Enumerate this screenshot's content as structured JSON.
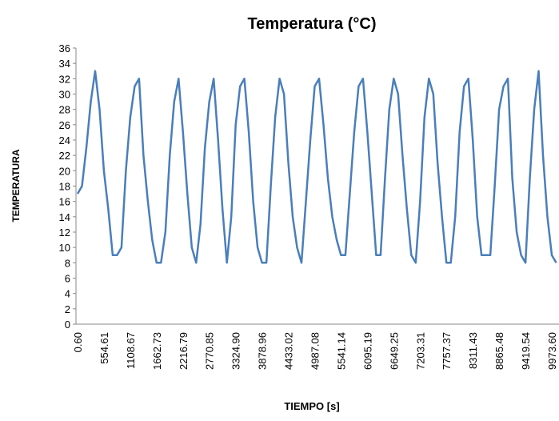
{
  "chart_data": {
    "type": "line",
    "title": "Temperatura (°C)",
    "x_label": "TIEMPO [s]",
    "y_label": "TEMPERATURA",
    "categories": [
      "0.60",
      null,
      null,
      null,
      null,
      null,
      "554.61",
      null,
      null,
      null,
      null,
      null,
      "1108.67",
      null,
      null,
      null,
      null,
      null,
      "1662.73",
      null,
      null,
      null,
      null,
      null,
      "2216.79",
      null,
      null,
      null,
      null,
      null,
      "2770.85",
      null,
      null,
      null,
      null,
      null,
      "3324.90",
      null,
      null,
      null,
      null,
      null,
      "3878.96",
      null,
      null,
      null,
      null,
      null,
      "4433.02",
      null,
      null,
      null,
      null,
      null,
      "4987.08",
      null,
      null,
      null,
      null,
      null,
      "5541.14",
      null,
      null,
      null,
      null,
      null,
      "6095.19",
      null,
      null,
      null,
      null,
      null,
      "6649.25",
      null,
      null,
      null,
      null,
      null,
      "7203.31",
      null,
      null,
      null,
      null,
      null,
      "7757.37",
      null,
      null,
      null,
      null,
      null,
      "8311.43",
      null,
      null,
      null,
      null,
      null,
      "8865.48",
      null,
      null,
      null,
      null,
      null,
      "9419.54",
      null,
      null,
      null,
      null,
      null,
      "9973.60",
      null
    ],
    "values": [
      17,
      18,
      23,
      29,
      33,
      28,
      20,
      15,
      9,
      9,
      10,
      20,
      27,
      31,
      32,
      22,
      16,
      11,
      8,
      8,
      12,
      22,
      29,
      32,
      25,
      17,
      10,
      8,
      13,
      23,
      29,
      32,
      24,
      15,
      8,
      14,
      26,
      31,
      32,
      25,
      16,
      10,
      8,
      8,
      18,
      27,
      32,
      30,
      21,
      14,
      10,
      8,
      16,
      24,
      31,
      32,
      26,
      19,
      14,
      11,
      9,
      9,
      17,
      25,
      31,
      32,
      25,
      17,
      9,
      9,
      19,
      28,
      32,
      30,
      22,
      15,
      9,
      8,
      16,
      27,
      32,
      30,
      21,
      14,
      8,
      8,
      14,
      25,
      31,
      32,
      24,
      14,
      9,
      9,
      9,
      18,
      28,
      31,
      32,
      19,
      12,
      9,
      8,
      19,
      28,
      33,
      22,
      14,
      9,
      8
    ],
    "color": "#4a7ebb",
    "ylim": [
      0,
      36
    ],
    "yticks": [
      0,
      2,
      4,
      6,
      8,
      10,
      12,
      14,
      16,
      18,
      20,
      22,
      24,
      26,
      28,
      30,
      32,
      34,
      36
    ],
    "grid": false
  }
}
